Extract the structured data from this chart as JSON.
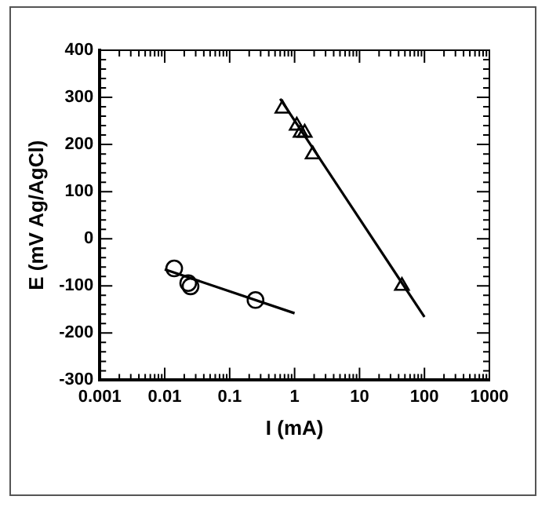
{
  "chart_data": {
    "type": "scatter",
    "xlabel": "I (mA)",
    "ylabel": "E (mV Ag/AgCl)",
    "log": "x",
    "xlim": [
      0.001,
      1000
    ],
    "ylim": [
      -300,
      400
    ],
    "xticks": [
      0.001,
      {
        "value": 0.002,
        "label": null
      },
      {
        "value": 0.003,
        "label": null
      },
      {
        "value": 0.004,
        "label": null
      },
      {
        "value": 0.005,
        "label": null
      },
      {
        "value": 0.006,
        "label": null
      },
      {
        "value": 0.007,
        "label": null
      },
      {
        "value": 0.008,
        "label": null
      },
      {
        "value": 0.009,
        "label": null
      },
      0.01,
      {
        "value": 0.02,
        "label": null
      },
      {
        "value": 0.03,
        "label": null
      },
      {
        "value": 0.04,
        "label": null
      },
      {
        "value": 0.05,
        "label": null
      },
      {
        "value": 0.06,
        "label": null
      },
      {
        "value": 0.07,
        "label": null
      },
      {
        "value": 0.08,
        "label": null
      },
      {
        "value": 0.09,
        "label": null
      },
      0.1,
      {
        "value": 0.2,
        "label": null
      },
      {
        "value": 0.3,
        "label": null
      },
      {
        "value": 0.4,
        "label": null
      },
      {
        "value": 0.5,
        "label": null
      },
      {
        "value": 0.6,
        "label": null
      },
      {
        "value": 0.7,
        "label": null
      },
      {
        "value": 0.8,
        "label": null
      },
      {
        "value": 0.9,
        "label": null
      },
      1,
      {
        "value": 2,
        "label": null
      },
      {
        "value": 3,
        "label": null
      },
      {
        "value": 4,
        "label": null
      },
      {
        "value": 5,
        "label": null
      },
      {
        "value": 6,
        "label": null
      },
      {
        "value": 7,
        "label": null
      },
      {
        "value": 8,
        "label": null
      },
      {
        "value": 9,
        "label": null
      },
      10,
      {
        "value": 20,
        "label": null
      },
      {
        "value": 30,
        "label": null
      },
      {
        "value": 40,
        "label": null
      },
      {
        "value": 50,
        "label": null
      },
      {
        "value": 60,
        "label": null
      },
      {
        "value": 70,
        "label": null
      },
      {
        "value": 80,
        "label": null
      },
      {
        "value": 90,
        "label": null
      },
      100,
      {
        "value": 200,
        "label": null
      },
      {
        "value": 300,
        "label": null
      },
      {
        "value": 400,
        "label": null
      },
      {
        "value": 500,
        "label": null
      },
      {
        "value": 600,
        "label": null
      },
      {
        "value": 700,
        "label": null
      },
      {
        "value": 800,
        "label": null
      },
      {
        "value": 900,
        "label": null
      },
      1000
    ],
    "yticks": [
      -300,
      {
        "value": -280,
        "label": null
      },
      {
        "value": -260,
        "label": null
      },
      {
        "value": -240,
        "label": null
      },
      {
        "value": -220,
        "label": null
      },
      -200,
      {
        "value": -180,
        "label": null
      },
      {
        "value": -160,
        "label": null
      },
      {
        "value": -140,
        "label": null
      },
      {
        "value": -120,
        "label": null
      },
      -100,
      {
        "value": -80,
        "label": null
      },
      {
        "value": -60,
        "label": null
      },
      {
        "value": -40,
        "label": null
      },
      {
        "value": -20,
        "label": null
      },
      0,
      {
        "value": 20,
        "label": null
      },
      {
        "value": 40,
        "label": null
      },
      {
        "value": 60,
        "label": null
      },
      {
        "value": 80,
        "label": null
      },
      100,
      {
        "value": 120,
        "label": null
      },
      {
        "value": 140,
        "label": null
      },
      {
        "value": 160,
        "label": null
      },
      {
        "value": 180,
        "label": null
      },
      200,
      {
        "value": 220,
        "label": null
      },
      {
        "value": 240,
        "label": null
      },
      {
        "value": 260,
        "label": null
      },
      {
        "value": 280,
        "label": null
      },
      300,
      {
        "value": 320,
        "label": null
      },
      {
        "value": 340,
        "label": null
      },
      {
        "value": 360,
        "label": null
      },
      {
        "value": 380,
        "label": null
      },
      400
    ],
    "grid": false,
    "legend": false,
    "series": [
      {
        "type": "scatter",
        "marker": "circle",
        "color": "#000000",
        "x": [
          0.014,
          0.023,
          0.025,
          0.25
        ],
        "values": [
          -63,
          -94,
          -101,
          -130
        ]
      },
      {
        "type": "scatter",
        "marker": "triangle",
        "color": "#000000",
        "x": [
          0.65,
          1.08,
          1.24,
          1.43,
          1.9,
          45
        ],
        "values": [
          276,
          240,
          225,
          225,
          179,
          -100
        ]
      },
      {
        "type": "line",
        "marker": "none",
        "line_style": "solid",
        "color": "#000000",
        "x": [
          0.01,
          1
        ],
        "values": [
          -65,
          -158
        ]
      },
      {
        "type": "line",
        "marker": "none",
        "line_style": "solid",
        "color": "#000000",
        "x": [
          0.6,
          100
        ],
        "values": [
          297,
          -166
        ]
      }
    ]
  }
}
